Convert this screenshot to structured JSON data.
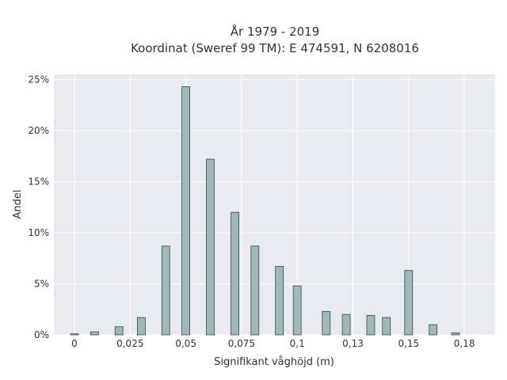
{
  "chart_data": {
    "type": "bar",
    "title_line1": "År 1979 - 2019",
    "title_line2": "Koordinat (Sweref 99 TM): E 474591, N 6208016",
    "xlabel": "Signifikant våghöjd (m)",
    "ylabel": "Andel",
    "x_ticks": [
      "0",
      "0,025",
      "0,05",
      "0,075",
      "0,1",
      "0,13",
      "0,15",
      "0,18"
    ],
    "y_ticks": [
      "0%",
      "5%",
      "10%",
      "15%",
      "20%",
      "25%"
    ],
    "ylim": [
      0,
      25.5
    ],
    "grid": true,
    "bars": [
      {
        "x": 0.0,
        "value": 0.1
      },
      {
        "x": 0.009,
        "value": 0.3
      },
      {
        "x": 0.02,
        "value": 0.8
      },
      {
        "x": 0.03,
        "value": 1.7
      },
      {
        "x": 0.041,
        "value": 8.7
      },
      {
        "x": 0.05,
        "value": 24.3
      },
      {
        "x": 0.061,
        "value": 17.2
      },
      {
        "x": 0.072,
        "value": 12.0
      },
      {
        "x": 0.081,
        "value": 8.7
      },
      {
        "x": 0.092,
        "value": 6.7
      },
      {
        "x": 0.1,
        "value": 4.8
      },
      {
        "x": 0.113,
        "value": 2.3
      },
      {
        "x": 0.122,
        "value": 2.0
      },
      {
        "x": 0.133,
        "value": 1.9
      },
      {
        "x": 0.14,
        "value": 1.7
      },
      {
        "x": 0.15,
        "value": 6.3
      },
      {
        "x": 0.161,
        "value": 1.0
      },
      {
        "x": 0.171,
        "value": 0.2
      }
    ],
    "colors": {
      "bar_fill": "#9fb7b6",
      "bar_stroke": "#3d4a49",
      "plot_bg": "#e9e9f0",
      "grid": "#ffffff"
    }
  }
}
